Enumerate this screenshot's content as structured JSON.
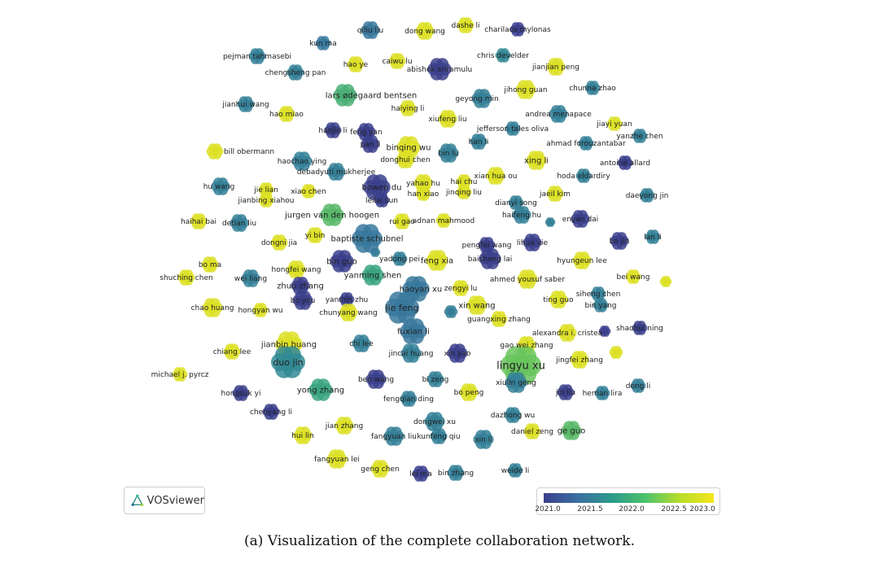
{
  "scale": {
    "min": 2021.0,
    "max": 2023.0
  },
  "palette": {
    "early": "#3b3f8c",
    "mid": "#2b9a8c",
    "late": "#4cc26b",
    "latest": "#f6e61b"
  },
  "nodes": [
    {
      "label": "qiliu liu",
      "year": 2021.6
    },
    {
      "label": "dong wang",
      "year": 2022.9
    },
    {
      "label": "dashe li",
      "year": 2022.9
    },
    {
      "label": "charilaos mylonas",
      "year": 2021.0
    },
    {
      "label": "kun ma",
      "year": 2021.6
    },
    {
      "label": "pejman tahmasebi",
      "year": 2021.7
    },
    {
      "label": "hao ye",
      "year": 2022.9
    },
    {
      "label": "caiwu lu",
      "year": 2022.9
    },
    {
      "label": "chris develder",
      "year": 2021.8
    },
    {
      "label": "abishek sriramulu",
      "year": 2021.0
    },
    {
      "label": "jianjian peng",
      "year": 2022.9
    },
    {
      "label": "chengsheng pan",
      "year": 2021.7
    },
    {
      "label": "jihong guan",
      "year": 2022.9
    },
    {
      "label": "chunna zhao",
      "year": 2021.7
    },
    {
      "label": "lars ødegaard bentsen",
      "year": 2022.2
    },
    {
      "label": "geyong min",
      "year": 2021.7
    },
    {
      "label": "jianhui wang",
      "year": 2021.7
    },
    {
      "label": "haiying li",
      "year": 2022.9
    },
    {
      "label": "hao miao",
      "year": 2022.9
    },
    {
      "label": "andrea menapace",
      "year": 2021.7
    },
    {
      "label": "xiufeng liu",
      "year": 2022.9
    },
    {
      "label": "jiayi yuan",
      "year": 2022.9
    },
    {
      "label": "haojie li",
      "year": 2021.0
    },
    {
      "label": "feng yan",
      "year": 2021.0
    },
    {
      "label": "jefferson tales oliva",
      "year": 2021.7
    },
    {
      "label": "yanzhe chen",
      "year": 2021.7
    },
    {
      "label": "pan li",
      "year": 2021.0
    },
    {
      "label": "han li",
      "year": 2021.7
    },
    {
      "label": "binqing wu",
      "year": 2022.9
    },
    {
      "label": "ahmad forouzantabar",
      "year": 2021.7
    },
    {
      "label": "bill obermann",
      "year": 2022.9
    },
    {
      "label": "donghui chen",
      "year": 2022.9
    },
    {
      "label": "bin lu",
      "year": 2021.7
    },
    {
      "label": "xing li",
      "year": 2022.9
    },
    {
      "label": "haochao ying",
      "year": 2021.7
    },
    {
      "label": "antoine allard",
      "year": 2021.0
    },
    {
      "label": "debadyuti mukherjee",
      "year": 2021.7
    },
    {
      "label": "xian hua ou",
      "year": 2022.9
    },
    {
      "label": "hoda eldardiry",
      "year": 2021.7
    },
    {
      "label": "hu wang",
      "year": 2021.7
    },
    {
      "label": "jie lian",
      "year": 2022.9
    },
    {
      "label": "yahao hu",
      "year": 2022.9
    },
    {
      "label": "hai chu",
      "year": 2022.9
    },
    {
      "label": "bowen du",
      "year": 2021.0
    },
    {
      "label": "xiao chen",
      "year": 2022.9
    },
    {
      "label": "jinqing liu",
      "year": 2022.9
    },
    {
      "label": "jaeil kim",
      "year": 2022.9
    },
    {
      "label": "daeyong jin",
      "year": 2021.7
    },
    {
      "label": "jianbing xiahou",
      "year": 2022.9
    },
    {
      "label": "han xiao",
      "year": 2022.9
    },
    {
      "label": "leilei sun",
      "year": 2021.0
    },
    {
      "label": "dianyi song",
      "year": 2021.7
    },
    {
      "label": "jurgen van den hoogen",
      "year": 2022.3
    },
    {
      "label": "haifeng hu",
      "year": 2021.7
    },
    {
      "label": "enyan dai",
      "year": 2021.0
    },
    {
      "label": "haihai bai",
      "year": 2022.9
    },
    {
      "label": "detian liu",
      "year": 2021.7
    },
    {
      "label": "rui gao",
      "year": 2022.9
    },
    {
      "label": "adnan mahmood",
      "year": 2022.9
    },
    {
      "label": "lan li",
      "year": 2021.7
    },
    {
      "label": "yi bin",
      "year": 2022.9
    },
    {
      "label": "baptiste schubnel",
      "year": 2021.6
    },
    {
      "label": "dongni jia",
      "year": 2022.9
    },
    {
      "label": "lihua xie",
      "year": 2021.0
    },
    {
      "label": "bo jin",
      "year": 2021.0
    },
    {
      "label": "pengfei wang",
      "year": 2021.0
    },
    {
      "label": "bo ma",
      "year": 2022.9
    },
    {
      "label": "bin guo",
      "year": 2021.0
    },
    {
      "label": "yadong pei",
      "year": 2021.7
    },
    {
      "label": "feng xia",
      "year": 2022.9
    },
    {
      "label": "baisheng lai",
      "year": 2021.0
    },
    {
      "label": "hyungeun lee",
      "year": 2022.9
    },
    {
      "label": "shu​ching chen",
      "year": 2022.9
    },
    {
      "label": "hongfei wang",
      "year": 2022.9
    },
    {
      "label": "wei liang",
      "year": 2021.7
    },
    {
      "label": "yanming shen",
      "year": 2022.1
    },
    {
      "label": "ahmed yousuf saber",
      "year": 2022.9
    },
    {
      "label": "bei wang",
      "year": 2022.9
    },
    {
      "label": "zhuo zhang",
      "year": 2021.0
    },
    {
      "label": "haoyan xu",
      "year": 2021.6
    },
    {
      "label": "zengyi lu",
      "year": 2022.9
    },
    {
      "label": "siheng chen",
      "year": 2021.7
    },
    {
      "label": "bo you",
      "year": 2021.0
    },
    {
      "label": "yanmin zhu",
      "year": 2021.0
    },
    {
      "label": "ting guo",
      "year": 2022.9
    },
    {
      "label": "bin yang",
      "year": 2021.7
    },
    {
      "label": "chao huang",
      "year": 2022.9
    },
    {
      "label": "hongyan wu",
      "year": 2022.9
    },
    {
      "label": "chunyang wang",
      "year": 2022.9
    },
    {
      "label": "jie feng",
      "year": 2021.6
    },
    {
      "label": "xin wang",
      "year": 2022.9
    },
    {
      "label": "guangxing zhang",
      "year": 2022.9
    },
    {
      "label": "shaohui ning",
      "year": 2021.0
    },
    {
      "label": "fuxian li",
      "year": 2021.6
    },
    {
      "label": "alexandra i. cristea",
      "year": 2022.9
    },
    {
      "label": "jianbin huang",
      "year": 2022.9
    },
    {
      "label": "chiang lee",
      "year": 2022.9
    },
    {
      "label": "chi lee",
      "year": 2021.7
    },
    {
      "label": "jincai huang",
      "year": 2021.7
    },
    {
      "label": "xin yao",
      "year": 2021.0
    },
    {
      "label": "gao wei zhang",
      "year": 2022.9
    },
    {
      "label": "jingfei zhang",
      "year": 2022.9
    },
    {
      "label": "duo jin",
      "year": 2021.8
    },
    {
      "label": "lingyu xu",
      "year": 2022.4
    },
    {
      "label": "michael j. pyrcz",
      "year": 2022.9
    },
    {
      "label": "ben wang",
      "year": 2021.0
    },
    {
      "label": "bi zeng",
      "year": 2021.7
    },
    {
      "label": "xiulin geng",
      "year": 2021.7
    },
    {
      "label": "deng li",
      "year": 2021.7
    },
    {
      "label": "yong zhang",
      "year": 2022.1
    },
    {
      "label": "hongsuk yi",
      "year": 2021.0
    },
    {
      "label": "fengqian ding",
      "year": 2021.7
    },
    {
      "label": "bo peng",
      "year": 2022.9
    },
    {
      "label": "jin liu",
      "year": 2021.0
    },
    {
      "label": "hernan lira",
      "year": 2021.7
    },
    {
      "label": "chenyang li",
      "year": 2021.0
    },
    {
      "label": "dazhong wu",
      "year": 2021.7
    },
    {
      "label": "jian zhang",
      "year": 2022.9
    },
    {
      "label": "dongwei xu",
      "year": 2021.7
    },
    {
      "label": "hui lin",
      "year": 2022.9
    },
    {
      "label": "fangyuan liu",
      "year": 2021.7
    },
    {
      "label": "kunfeng qiu",
      "year": 2021.7
    },
    {
      "label": "xin li",
      "year": 2021.7
    },
    {
      "label": "daniel zeng",
      "year": 2022.9
    },
    {
      "label": "ge guo",
      "year": 2022.3
    },
    {
      "label": "fangyuan lei",
      "year": 2022.9
    },
    {
      "label": "geng chen",
      "year": 2022.9
    },
    {
      "label": "lei ma",
      "year": 2021.0
    },
    {
      "label": "bin zhang",
      "year": 2021.7
    },
    {
      "label": "weide li",
      "year": 2021.7
    }
  ],
  "vos_button": {
    "label": "VOSviewer"
  },
  "legend": {
    "ticks": [
      "2021.0",
      "2021.5",
      "2022.0",
      "2022.5",
      "2023.0"
    ]
  },
  "caption": "(a) Visualization of the complete collaboration network."
}
